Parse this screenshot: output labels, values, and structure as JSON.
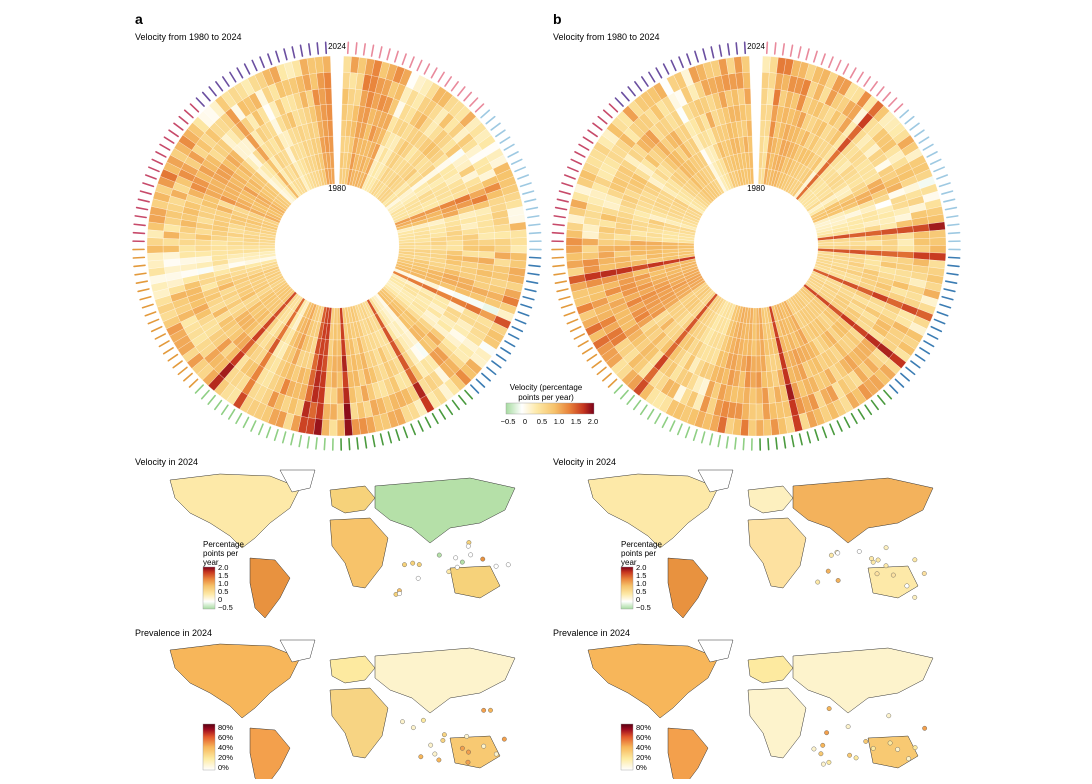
{
  "panels": [
    {
      "letter": "a",
      "circle_title": "Velocity from 1980 to 2024",
      "inner_year": "1980",
      "outer_year": "2024",
      "map1_title": "Velocity in 2024",
      "map2_title": "Prevalence in 2024"
    },
    {
      "letter": "b",
      "circle_title": "Velocity from 1980 to 2024",
      "inner_year": "1980",
      "outer_year": "2024",
      "map1_title": "Velocity in 2024",
      "map2_title": "Prevalence in 2024"
    }
  ],
  "velocity_legend": {
    "title_line1": "Velocity (percentage",
    "title_line2": "points per year)",
    "ticks": [
      "−0.5",
      "0",
      "0.5",
      "1.0",
      "1.5",
      "2.0"
    ]
  },
  "map_velocity_legend": {
    "title_line1": "Percentage",
    "title_line2": "points per",
    "title_line3": "year",
    "ticks": [
      "2.0",
      "1.5",
      "1.0",
      "0.5",
      "0",
      "−0.5"
    ]
  },
  "map_prevalence_legend": {
    "ticks": [
      "80%",
      "60%",
      "40%",
      "20%",
      "0%"
    ]
  },
  "colors": {
    "velocity_scale": [
      "#a6dba0",
      "#ffffff",
      "#fde9a8",
      "#f6c26b",
      "#e8823a",
      "#c6361f",
      "#7a0018"
    ],
    "prevalence_scale": [
      "#ffffff",
      "#fdeaa0",
      "#f7b65a",
      "#e3592b",
      "#9d0b1f",
      "#5a0013"
    ],
    "region_label_colors": [
      "#e98a9c",
      "#9ec9e2",
      "#3b7cb3",
      "#4a9a3e",
      "#8fcf84",
      "#e39a3c",
      "#c74a6a",
      "#6b4fa0"
    ],
    "ocean": "#ffffff",
    "border": "#333333"
  },
  "chart_data": [
    {
      "type": "heatmap",
      "title": "Velocity from 1980 to 2024",
      "form": "radial",
      "radial_axis": [
        "1980",
        "2024"
      ],
      "color_range": [
        -0.5,
        2.0
      ],
      "legend": "Velocity (percentage points per year)"
    },
    {
      "type": "heatmap",
      "title": "Velocity from 1980 to 2024",
      "form": "radial",
      "radial_axis": [
        "1980",
        "2024"
      ],
      "color_range": [
        -0.5,
        2.0
      ],
      "legend": "Velocity (percentage points per year)"
    }
  ]
}
